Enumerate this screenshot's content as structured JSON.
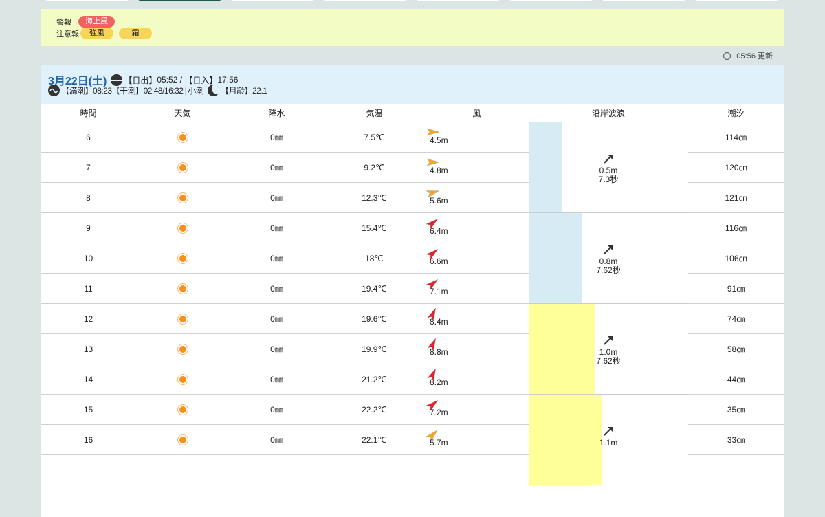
{
  "tabs": [
    {
      "active": false
    },
    {
      "active": true
    },
    {
      "active": false
    },
    {
      "active": false
    },
    {
      "active": false
    },
    {
      "active": false
    },
    {
      "active": false
    },
    {
      "active": false
    }
  ],
  "alerts": {
    "warning_label": "警報",
    "warnings": [
      "海上風"
    ],
    "advisory_label": "注意報",
    "advisories": [
      "強風",
      "霜"
    ],
    "warning_color": "#f06161",
    "advisory_color": "#f8d45c"
  },
  "updated": "05:56 更新",
  "day": {
    "date": "3月22日(土)",
    "sunrise_label": "【日出】",
    "sunrise": "05:52",
    "slash": " / ",
    "sunset_label": "【日入】",
    "sunset": "17:56",
    "high_tide_label": "【満潮】",
    "high_tide": "08:23",
    "low_tide_label": "【干潮】",
    "low_tide": "02:48/16:32",
    "tide_type": "小潮",
    "moon_label": "【月齢】",
    "moon_age": "22.1"
  },
  "headers": [
    "時間",
    "天気",
    "降水",
    "気温",
    "風",
    "沿岸波浪",
    "潮汐"
  ],
  "rows": [
    {
      "hour": "6",
      "weather": "sunny",
      "rain": "0㎜",
      "temp": "7.5℃",
      "wind": "4.5m",
      "wind_dir_deg": 0,
      "wind_color": "#f5a623",
      "tide": "114㎝"
    },
    {
      "hour": "7",
      "weather": "sunny",
      "rain": "0㎜",
      "temp": "9.2℃",
      "wind": "4.8m",
      "wind_dir_deg": 0,
      "wind_color": "#f5a623",
      "tide": "120㎝"
    },
    {
      "hour": "8",
      "weather": "sunny",
      "rain": "0㎜",
      "temp": "12.3℃",
      "wind": "5.6m",
      "wind_dir_deg": -15,
      "wind_color": "#f5a623",
      "tide": "121㎝"
    },
    {
      "hour": "9",
      "weather": "sunny",
      "rain": "0㎜",
      "temp": "15.4℃",
      "wind": "6.4m",
      "wind_dir_deg": -40,
      "wind_color": "#e8202a",
      "tide": "116㎝"
    },
    {
      "hour": "10",
      "weather": "sunny",
      "rain": "0㎜",
      "temp": "18℃",
      "wind": "6.6m",
      "wind_dir_deg": -40,
      "wind_color": "#e8202a",
      "tide": "106㎝"
    },
    {
      "hour": "11",
      "weather": "sunny",
      "rain": "0㎜",
      "temp": "19.4℃",
      "wind": "7.1m",
      "wind_dir_deg": -40,
      "wind_color": "#e8202a",
      "tide": "91㎝"
    },
    {
      "hour": "12",
      "weather": "sunny",
      "rain": "0㎜",
      "temp": "19.6℃",
      "wind": "8.4m",
      "wind_dir_deg": -65,
      "wind_color": "#e8202a",
      "tide": "74㎝"
    },
    {
      "hour": "13",
      "weather": "sunny",
      "rain": "0㎜",
      "temp": "19.9℃",
      "wind": "8.8m",
      "wind_dir_deg": -65,
      "wind_color": "#e8202a",
      "tide": "58㎝"
    },
    {
      "hour": "14",
      "weather": "sunny",
      "rain": "0㎜",
      "temp": "21.2℃",
      "wind": "8.2m",
      "wind_dir_deg": -65,
      "wind_color": "#e8202a",
      "tide": "44㎝"
    },
    {
      "hour": "15",
      "weather": "sunny",
      "rain": "0㎜",
      "temp": "22.2℃",
      "wind": "7.2m",
      "wind_dir_deg": -40,
      "wind_color": "#e8202a",
      "tide": "35㎝"
    },
    {
      "hour": "16",
      "weather": "sunny",
      "rain": "0㎜",
      "temp": "22.1℃",
      "wind": "5.7m",
      "wind_dir_deg": -45,
      "wind_color": "#f5a623",
      "tide": "33㎝"
    }
  ],
  "waves": [
    {
      "height": "0.5m",
      "period": "7.3秒",
      "height_m": 0.5,
      "color": "#d7ebf5"
    },
    {
      "height": "0.8m",
      "period": "7.62秒",
      "height_m": 0.8,
      "color": "#d7ebf5"
    },
    {
      "height": "1.0m",
      "period": "7.62秒",
      "height_m": 1.0,
      "color": "#ffff99"
    },
    {
      "height": "1.1m",
      "period": "",
      "height_m": 1.1,
      "color": "#ffff99"
    }
  ]
}
